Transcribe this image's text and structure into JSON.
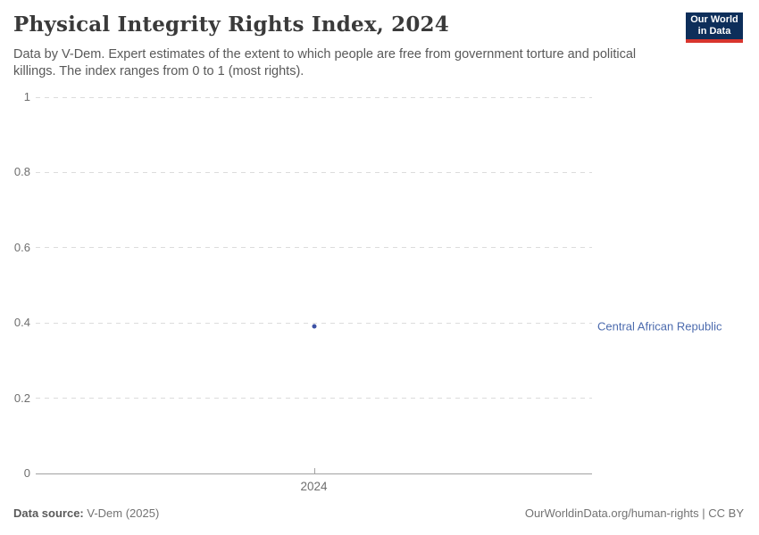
{
  "header": {
    "title": "Physical Integrity Rights Index, 2024",
    "subtitle": "Data by V-Dem. Expert estimates of the extent to which people are free from government torture and political killings. The index ranges from 0 to 1 (most rights).",
    "logo": {
      "line1": "Our World",
      "line2": "in Data",
      "bg_color": "#0d2e5a",
      "bar_color": "#d8352e"
    }
  },
  "chart_data": {
    "type": "scatter",
    "title": "Physical Integrity Rights Index, 2024",
    "x": [
      2024
    ],
    "xtick_labels": [
      "2024"
    ],
    "series": [
      {
        "name": "Central African Republic",
        "values": [
          0.39
        ],
        "color": "#3d52a5",
        "label_color": "#4c6bae"
      }
    ],
    "xlabel": "",
    "ylabel": "",
    "ylim": [
      0,
      1
    ],
    "yticks": [
      0,
      0.2,
      0.4,
      0.6,
      0.8,
      1
    ],
    "ytick_labels": [
      "0",
      "0.2",
      "0.4",
      "0.6",
      "0.8",
      "1"
    ],
    "grid": "horizontal dashed, solid baseline at 0",
    "legend_position": "label right of point"
  },
  "footer": {
    "source_label": "Data source:",
    "source_value": " V-Dem (2025)",
    "credit": "OurWorldinData.org/human-rights | CC BY"
  },
  "colors": {
    "brand_navy": "#0d2e5a",
    "brand_red": "#d8352e",
    "series_blue": "#3d52a5",
    "entity_label_blue": "#4c6bae",
    "gridline": "#dcdcdc",
    "axis": "#a1a1a1",
    "tick_text": "#6e6e6e"
  }
}
